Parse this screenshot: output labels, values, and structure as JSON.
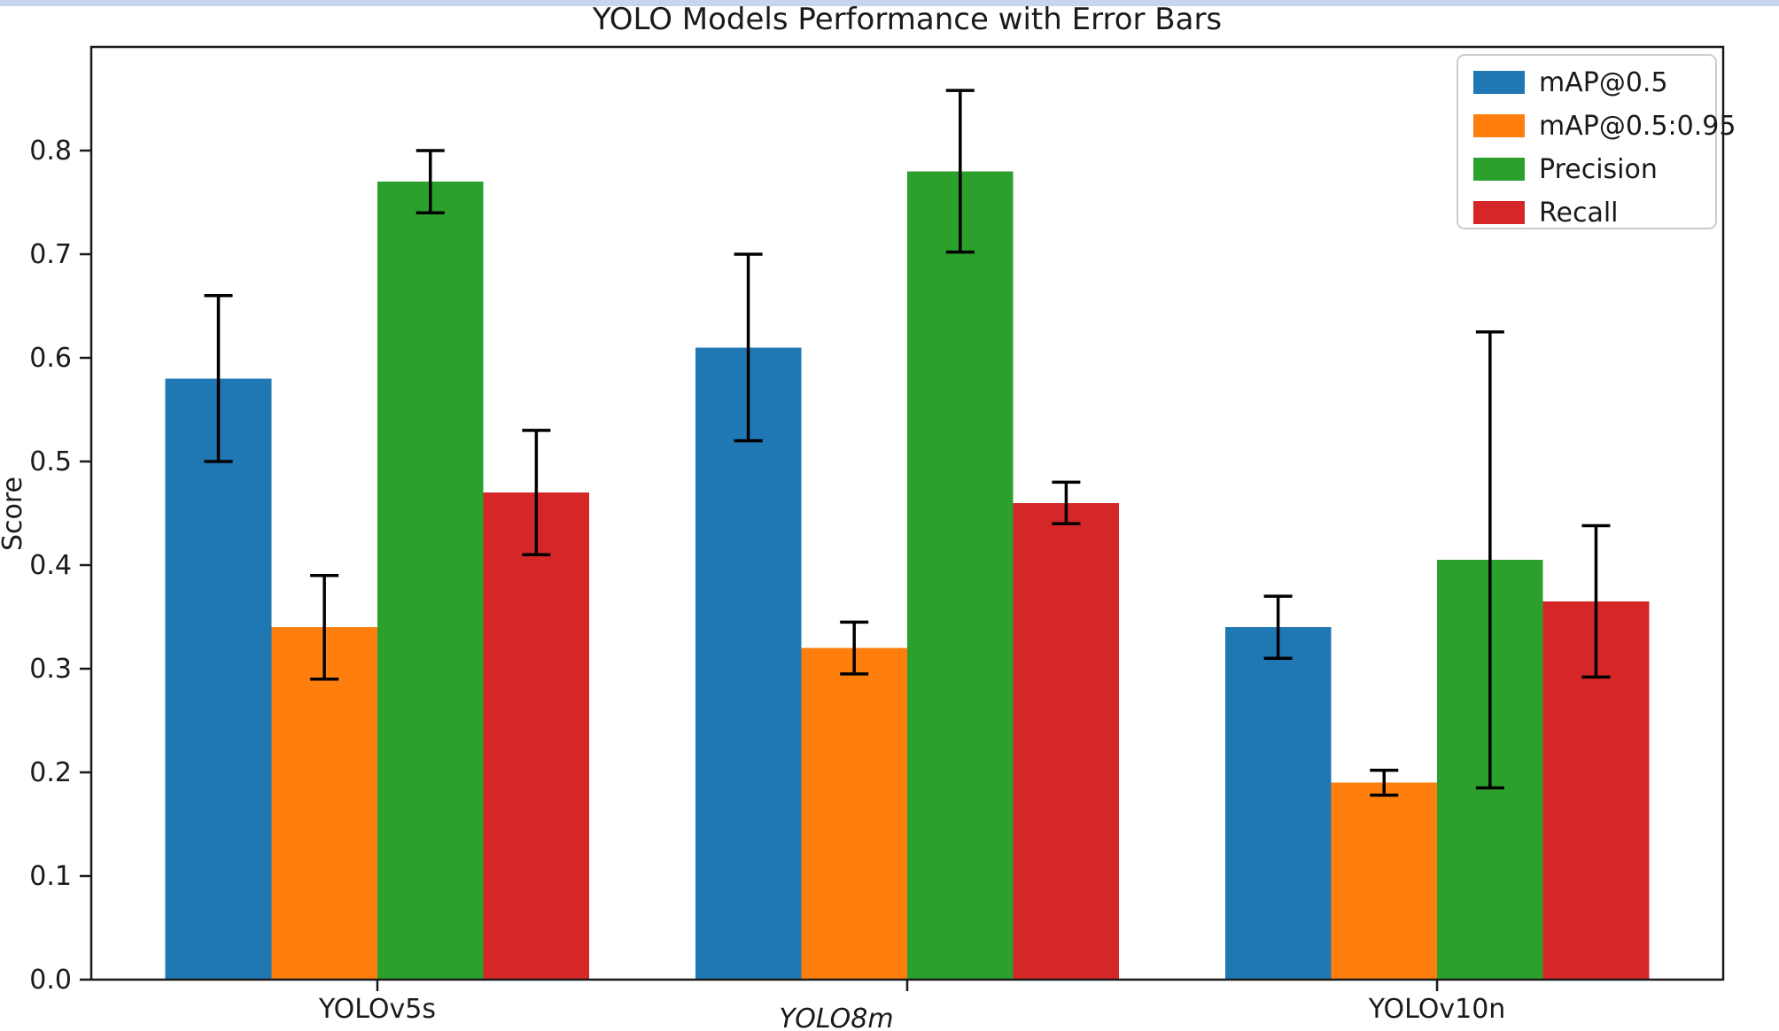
{
  "page": {
    "top_strip_color": "#c9d4ee",
    "background_color": "#ffffff"
  },
  "chart_data": {
    "type": "bar",
    "title": "YOLO Models Performance with Error Bars",
    "xlabel": "",
    "ylabel": "Score",
    "categories": [
      {
        "label": "YOLOv5s",
        "italic": false
      },
      {
        "label": "YOLO8m",
        "italic": true
      },
      {
        "label": "YOLOv10n",
        "italic": false
      }
    ],
    "series": [
      {
        "name": "mAP@0.5",
        "color": "#1f77b4",
        "values": [
          0.58,
          0.61,
          0.34
        ],
        "errors": [
          0.08,
          0.09,
          0.03
        ]
      },
      {
        "name": "mAP@0.5:0.95",
        "color": "#ff7f0e",
        "values": [
          0.34,
          0.32,
          0.19
        ],
        "errors": [
          0.05,
          0.025,
          0.012
        ]
      },
      {
        "name": "Precision",
        "color": "#2ca02c",
        "values": [
          0.77,
          0.78,
          0.405
        ],
        "errors": [
          0.03,
          0.078,
          0.22
        ]
      },
      {
        "name": "Recall",
        "color": "#d62728",
        "values": [
          0.47,
          0.46,
          0.365
        ],
        "errors": [
          0.06,
          0.02,
          0.073
        ]
      }
    ],
    "error_bar_color": "#000000",
    "ytick_labels": [
      "0.0",
      "0.1",
      "0.2",
      "0.3",
      "0.4",
      "0.5",
      "0.6",
      "0.7",
      "0.8"
    ],
    "yticks": [
      0.0,
      0.1,
      0.2,
      0.3,
      0.4,
      0.5,
      0.6,
      0.7,
      0.8
    ],
    "ylim": [
      0,
      0.9
    ],
    "xlim": [
      -0.54,
      2.54
    ],
    "bar_width_units": 0.2,
    "grid": false,
    "legend": {
      "position": "upper right",
      "entries": [
        "mAP@0.5",
        "mAP@0.5:0.95",
        "Precision",
        "Recall"
      ]
    }
  }
}
